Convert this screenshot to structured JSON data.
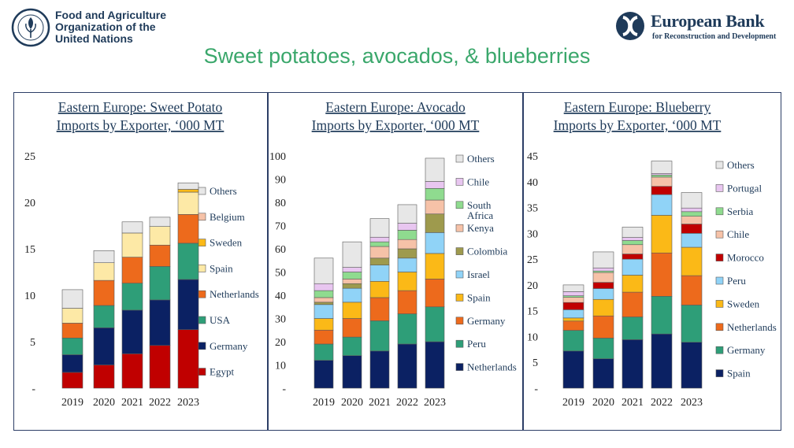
{
  "header": {
    "fao_name_lines": [
      "Food and Agriculture",
      "Organization of the",
      "United Nations"
    ],
    "fao_logo_text": "FAO FIAT PANIS",
    "ebrd_name": "European Bank",
    "ebrd_subtitle": "for Reconstruction and Development",
    "main_title": "Sweet potatoes, avocados, & blueberries"
  },
  "chart_data": [
    {
      "type": "bar",
      "stacked": true,
      "title": "Eastern Europe: Sweet Potato Imports by Exporter, ‘000 MT",
      "title_lines": [
        "Eastern Europe: Sweet Potato",
        "Imports by Exporter, ‘000 MT"
      ],
      "categories": [
        "2019",
        "2020",
        "2021",
        "2022",
        "2023"
      ],
      "ylim": [
        0,
        25
      ],
      "yticks": [
        "-",
        "5",
        "10",
        "15",
        "20",
        "25"
      ],
      "legend_position": "right",
      "series": [
        {
          "name": "Egypt",
          "color": "#c00000",
          "values": [
            1.7,
            2.5,
            3.7,
            4.6,
            6.3
          ]
        },
        {
          "name": "Germany",
          "color": "#0b2163",
          "values": [
            1.9,
            4.0,
            4.7,
            4.9,
            5.4
          ]
        },
        {
          "name": "USA",
          "color": "#2e9e78",
          "values": [
            1.8,
            2.4,
            2.9,
            3.6,
            3.9
          ]
        },
        {
          "name": "Netherlands",
          "color": "#ed6a1c",
          "values": [
            1.6,
            2.7,
            2.8,
            2.3,
            3.1
          ]
        },
        {
          "name": "Spain",
          "color": "#fde9a6",
          "values": [
            1.6,
            1.9,
            2.6,
            2.0,
            2.4
          ]
        },
        {
          "name": "Sweden",
          "color": "#fbb917",
          "values": [
            0.0,
            0.0,
            0.0,
            0.0,
            0.3
          ]
        },
        {
          "name": "Belgium",
          "color": "#f6c2a8",
          "values": [
            0.0,
            0.0,
            0.0,
            0.0,
            0.0
          ]
        },
        {
          "name": "Others",
          "color": "#e7e7e7",
          "values": [
            2.0,
            1.3,
            1.2,
            1.0,
            0.7
          ]
        }
      ]
    },
    {
      "type": "bar",
      "stacked": true,
      "title": "Eastern Europe: Avocado Imports by Exporter, ‘000 MT",
      "title_lines": [
        "Eastern Europe: Avocado",
        "Imports by Exporter, ‘000 MT"
      ],
      "categories": [
        "2019",
        "2020",
        "2021",
        "2022",
        "2023"
      ],
      "ylim": [
        0,
        100
      ],
      "yticks": [
        "-",
        "10",
        "20",
        "30",
        "40",
        "50",
        "60",
        "70",
        "80",
        "90",
        "100"
      ],
      "legend_position": "right",
      "series": [
        {
          "name": "Netherlands",
          "color": "#0b2163",
          "values": [
            12,
            14,
            16,
            19,
            20
          ]
        },
        {
          "name": "Peru",
          "color": "#2e9e78",
          "values": [
            7,
            8,
            13,
            13,
            15
          ]
        },
        {
          "name": "Germany",
          "color": "#ed6a1c",
          "values": [
            6,
            8,
            10,
            10,
            12
          ]
        },
        {
          "name": "Spain",
          "color": "#fbb917",
          "values": [
            5,
            7,
            7,
            8,
            11
          ]
        },
        {
          "name": "Israel",
          "color": "#90d3f7",
          "values": [
            6,
            6,
            7,
            6,
            9
          ]
        },
        {
          "name": "Colombia",
          "color": "#9e9a4d",
          "values": [
            1,
            2,
            3,
            4,
            8
          ]
        },
        {
          "name": "Kenya",
          "color": "#f6c2a8",
          "values": [
            2,
            2,
            5,
            4,
            6
          ]
        },
        {
          "name": "South Africa",
          "color": "#8fdb8f",
          "values": [
            3,
            3,
            2,
            4,
            5
          ]
        },
        {
          "name": "Chile",
          "color": "#e8c6f0",
          "values": [
            3,
            2,
            2,
            3,
            3
          ]
        },
        {
          "name": "Others",
          "color": "#e7e7e7",
          "values": [
            11,
            11,
            8,
            8,
            10
          ]
        }
      ]
    },
    {
      "type": "bar",
      "stacked": true,
      "title": "Eastern Europe: Blueberry Imports by Exporter, ‘000 MT",
      "title_lines": [
        "Eastern Europe: Blueberry",
        "Imports by Exporter, ‘000 MT"
      ],
      "categories": [
        "2019",
        "2020",
        "2021",
        "2022",
        "2023"
      ],
      "ylim": [
        0,
        45
      ],
      "yticks": [
        "-",
        "5",
        "10",
        "15",
        "20",
        "25",
        "30",
        "35",
        "40",
        "45"
      ],
      "legend_position": "right",
      "series": [
        {
          "name": "Spain",
          "color": "#0b2163",
          "values": [
            7.2,
            5.7,
            9.4,
            10.5,
            8.9
          ]
        },
        {
          "name": "Germany",
          "color": "#2e9e78",
          "values": [
            4.0,
            4.0,
            4.4,
            7.3,
            7.2
          ]
        },
        {
          "name": "Netherlands",
          "color": "#ed6a1c",
          "values": [
            1.8,
            4.3,
            4.8,
            8.4,
            5.7
          ]
        },
        {
          "name": "Sweden",
          "color": "#fbb917",
          "values": [
            0.6,
            3.2,
            3.3,
            7.3,
            5.5
          ]
        },
        {
          "name": "Peru",
          "color": "#90d3f7",
          "values": [
            1.6,
            2.1,
            3.1,
            4.0,
            2.7
          ]
        },
        {
          "name": "Morocco",
          "color": "#c00000",
          "values": [
            1.4,
            1.2,
            1.0,
            1.6,
            1.8
          ]
        },
        {
          "name": "Chile",
          "color": "#f6c2a8",
          "values": [
            1.0,
            1.9,
            1.8,
            1.8,
            1.5
          ]
        },
        {
          "name": "Serbia",
          "color": "#8fdb8f",
          "values": [
            0.3,
            0.3,
            0.8,
            0.4,
            0.9
          ]
        },
        {
          "name": "Portugal",
          "color": "#e8c6f0",
          "values": [
            0.8,
            0.6,
            0.6,
            0.3,
            0.7
          ]
        },
        {
          "name": "Others",
          "color": "#e7e7e7",
          "values": [
            1.3,
            3.1,
            2.0,
            2.4,
            3.0
          ]
        }
      ]
    }
  ]
}
